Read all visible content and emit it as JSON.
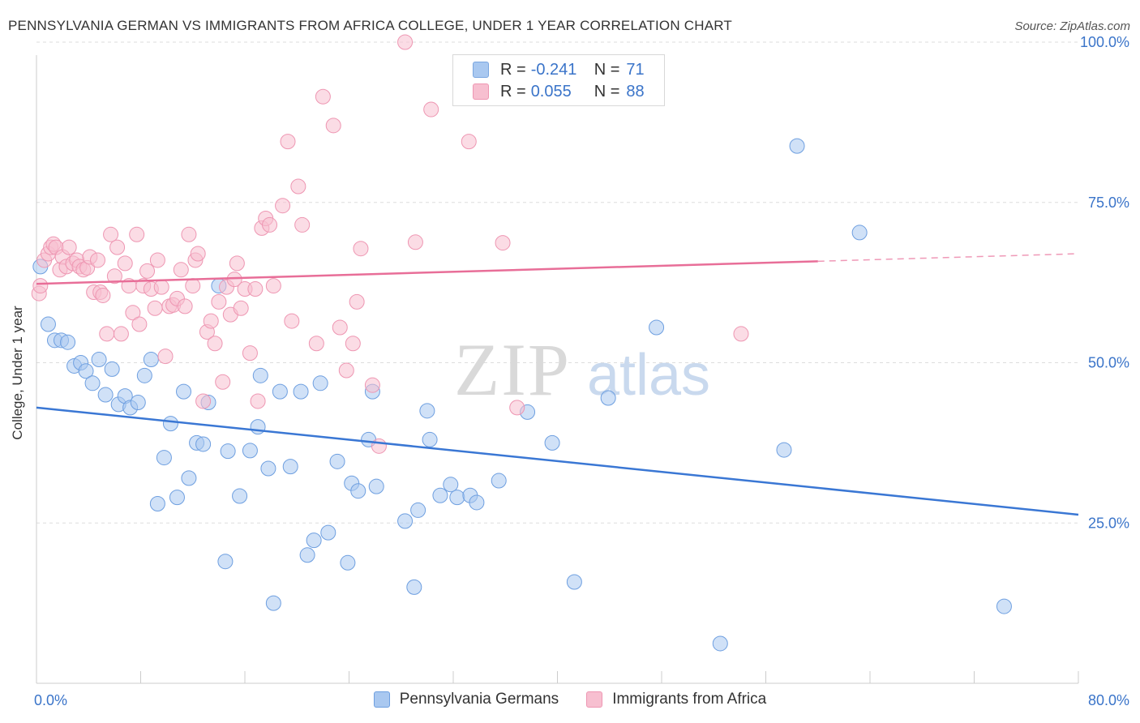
{
  "title": "PENNSYLVANIA GERMAN VS IMMIGRANTS FROM AFRICA COLLEGE, UNDER 1 YEAR CORRELATION CHART",
  "source": "Source: ZipAtlas.com",
  "watermark": {
    "zip": "ZIP",
    "atlas": "atlas"
  },
  "legend_top": [
    {
      "r_label": "R =",
      "r_value": "-0.241",
      "n_label": "N =",
      "n_value": "71",
      "color": "#a9c8f0",
      "border": "#7aa6e0"
    },
    {
      "r_label": "R =",
      "r_value": "0.055",
      "n_label": "N =",
      "n_value": "88",
      "color": "#f7bfd0",
      "border": "#ee96b2"
    }
  ],
  "chart_data": {
    "type": "scatter",
    "title": "PENNSYLVANIA GERMAN VS IMMIGRANTS FROM AFRICA COLLEGE, UNDER 1 YEAR CORRELATION CHART",
    "xlabel": "",
    "ylabel": "College, Under 1 year",
    "xlim": [
      0,
      80
    ],
    "ylim": [
      0,
      100
    ],
    "x_tick_labels": [
      "0.0%",
      "80.0%"
    ],
    "y_tick_labels": [
      "100.0%",
      "75.0%",
      "50.0%",
      "25.0%"
    ],
    "y_tick_values": [
      100,
      75,
      50,
      25
    ],
    "grid": true,
    "legend_position": "bottom",
    "series": [
      {
        "name": "Pennsylvania Germans",
        "color": "#a9c8f0",
        "stroke": "#6e9fe0",
        "line_color": "#3a77d4",
        "trend": {
          "x0": 0,
          "y0": 43.0,
          "x1": 80,
          "y1": 26.3,
          "dashed_from": null
        },
        "points": [
          [
            0.3,
            65.0
          ],
          [
            0.9,
            56.0
          ],
          [
            1.4,
            53.5
          ],
          [
            1.9,
            53.5
          ],
          [
            2.4,
            53.2
          ],
          [
            2.9,
            49.5
          ],
          [
            3.4,
            50.0
          ],
          [
            3.8,
            48.7
          ],
          [
            4.3,
            46.8
          ],
          [
            4.8,
            50.5
          ],
          [
            5.3,
            45.0
          ],
          [
            5.8,
            49.0
          ],
          [
            6.3,
            43.5
          ],
          [
            6.8,
            44.8
          ],
          [
            7.2,
            43.0
          ],
          [
            7.8,
            43.8
          ],
          [
            8.3,
            48.0
          ],
          [
            8.8,
            50.5
          ],
          [
            9.3,
            28.0
          ],
          [
            9.8,
            35.2
          ],
          [
            10.3,
            40.5
          ],
          [
            10.8,
            29.0
          ],
          [
            11.3,
            45.5
          ],
          [
            11.7,
            32.0
          ],
          [
            12.3,
            37.5
          ],
          [
            12.8,
            37.3
          ],
          [
            13.2,
            43.8
          ],
          [
            14.0,
            62.0
          ],
          [
            14.5,
            19.0
          ],
          [
            14.7,
            36.2
          ],
          [
            15.6,
            29.2
          ],
          [
            16.4,
            36.3
          ],
          [
            17.0,
            40.0
          ],
          [
            17.2,
            48.0
          ],
          [
            17.8,
            33.5
          ],
          [
            18.2,
            12.5
          ],
          [
            18.7,
            45.5
          ],
          [
            19.5,
            33.8
          ],
          [
            20.3,
            45.5
          ],
          [
            20.8,
            20.0
          ],
          [
            21.3,
            22.3
          ],
          [
            21.8,
            46.8
          ],
          [
            22.4,
            23.5
          ],
          [
            23.1,
            34.6
          ],
          [
            23.9,
            18.8
          ],
          [
            24.2,
            31.2
          ],
          [
            24.7,
            30.0
          ],
          [
            25.5,
            38.0
          ],
          [
            25.8,
            45.5
          ],
          [
            26.1,
            30.7
          ],
          [
            28.3,
            25.3
          ],
          [
            29.0,
            15.0
          ],
          [
            29.3,
            27.0
          ],
          [
            30.0,
            42.5
          ],
          [
            30.2,
            38.0
          ],
          [
            31.0,
            29.3
          ],
          [
            31.8,
            31.0
          ],
          [
            32.3,
            29.0
          ],
          [
            33.3,
            29.3
          ],
          [
            33.8,
            28.2
          ],
          [
            35.5,
            31.6
          ],
          [
            37.7,
            42.3
          ],
          [
            39.6,
            37.5
          ],
          [
            41.3,
            15.8
          ],
          [
            43.9,
            44.5
          ],
          [
            47.6,
            55.5
          ],
          [
            52.5,
            6.2
          ],
          [
            57.4,
            36.4
          ],
          [
            58.4,
            83.8
          ],
          [
            63.2,
            70.3
          ],
          [
            74.3,
            12.0
          ]
        ]
      },
      {
        "name": "Immigrants from Africa",
        "color": "#f7bfd0",
        "stroke": "#ee96b2",
        "line_color": "#e86e98",
        "trend": {
          "x0": 0,
          "y0": 62.3,
          "x1": 80,
          "y1": 67.0,
          "dashed_from": 60
        },
        "points": [
          [
            0.2,
            60.8
          ],
          [
            0.6,
            66.0
          ],
          [
            0.9,
            67.0
          ],
          [
            1.1,
            68.0
          ],
          [
            1.3,
            68.5
          ],
          [
            1.5,
            68.0
          ],
          [
            1.8,
            64.5
          ],
          [
            2.0,
            66.5
          ],
          [
            2.3,
            65.0
          ],
          [
            2.5,
            68.0
          ],
          [
            2.8,
            65.5
          ],
          [
            3.1,
            66.0
          ],
          [
            3.3,
            65.0
          ],
          [
            3.6,
            64.5
          ],
          [
            3.9,
            64.8
          ],
          [
            4.1,
            66.5
          ],
          [
            4.4,
            61.0
          ],
          [
            4.7,
            66.0
          ],
          [
            4.9,
            61.0
          ],
          [
            5.1,
            60.5
          ],
          [
            5.4,
            54.5
          ],
          [
            5.7,
            70.0
          ],
          [
            6.0,
            63.5
          ],
          [
            6.2,
            68.0
          ],
          [
            6.5,
            54.5
          ],
          [
            6.8,
            65.5
          ],
          [
            7.1,
            62.0
          ],
          [
            7.4,
            57.8
          ],
          [
            7.7,
            70.0
          ],
          [
            7.9,
            56.0
          ],
          [
            8.2,
            62.0
          ],
          [
            8.5,
            64.3
          ],
          [
            8.8,
            61.5
          ],
          [
            9.1,
            58.5
          ],
          [
            9.3,
            66.0
          ],
          [
            9.6,
            61.8
          ],
          [
            9.9,
            51.0
          ],
          [
            10.2,
            58.8
          ],
          [
            10.5,
            59.0
          ],
          [
            10.8,
            60.0
          ],
          [
            11.1,
            64.5
          ],
          [
            11.4,
            58.8
          ],
          [
            11.7,
            70.0
          ],
          [
            12.0,
            62.0
          ],
          [
            12.2,
            66.0
          ],
          [
            12.4,
            67.0
          ],
          [
            12.8,
            44.0
          ],
          [
            13.1,
            54.8
          ],
          [
            13.4,
            56.5
          ],
          [
            13.7,
            53.0
          ],
          [
            14.0,
            59.5
          ],
          [
            14.3,
            47.0
          ],
          [
            14.6,
            61.8
          ],
          [
            14.9,
            57.5
          ],
          [
            15.2,
            63.0
          ],
          [
            15.4,
            65.5
          ],
          [
            15.7,
            58.5
          ],
          [
            16.0,
            61.5
          ],
          [
            16.4,
            51.5
          ],
          [
            16.8,
            61.5
          ],
          [
            17.0,
            44.0
          ],
          [
            17.3,
            71.0
          ],
          [
            17.6,
            72.5
          ],
          [
            17.9,
            71.5
          ],
          [
            18.2,
            62.0
          ],
          [
            18.9,
            74.5
          ],
          [
            19.3,
            84.5
          ],
          [
            19.6,
            56.5
          ],
          [
            20.1,
            77.5
          ],
          [
            20.4,
            71.5
          ],
          [
            21.5,
            53.0
          ],
          [
            22.0,
            91.5
          ],
          [
            22.8,
            87.0
          ],
          [
            23.3,
            55.5
          ],
          [
            23.8,
            48.8
          ],
          [
            24.3,
            53.0
          ],
          [
            24.6,
            59.5
          ],
          [
            24.9,
            67.8
          ],
          [
            25.8,
            46.5
          ],
          [
            26.3,
            37.0
          ],
          [
            28.3,
            100.0
          ],
          [
            29.1,
            68.8
          ],
          [
            30.3,
            89.5
          ],
          [
            33.2,
            84.5
          ],
          [
            35.8,
            68.7
          ],
          [
            36.9,
            43.0
          ],
          [
            54.1,
            54.5
          ],
          [
            0.3,
            62.0
          ]
        ]
      }
    ]
  }
}
